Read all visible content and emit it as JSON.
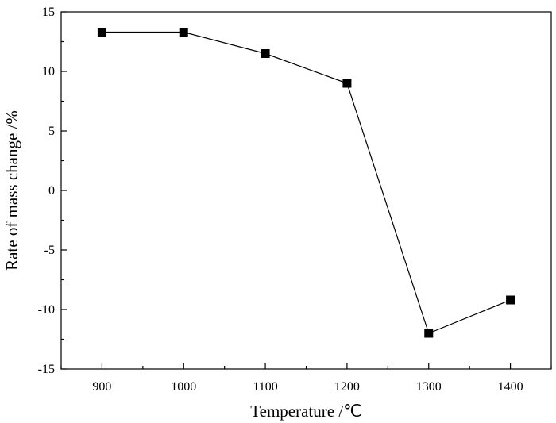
{
  "chart_data": {
    "type": "line",
    "title": "",
    "xlabel": "Temperature /℃",
    "ylabel": "Rate of mass change /%",
    "x": [
      900,
      1000,
      1100,
      1200,
      1300,
      1400
    ],
    "series": [
      {
        "values": [
          13.3,
          13.3,
          11.5,
          9.0,
          -12.0,
          -9.2
        ]
      }
    ],
    "xlim": [
      850,
      1450
    ],
    "ylim": [
      -15,
      15
    ],
    "x_ticks": [
      "900",
      "1000",
      "1100",
      "1200",
      "1300",
      "1400"
    ],
    "y_ticks": [
      "-15",
      "-10",
      "-5",
      "0",
      "5",
      "10",
      "15"
    ],
    "marker": "square",
    "grid": false,
    "legend": "none",
    "colors": {
      "line": "#000000",
      "marker": "#000000",
      "axes": "#000000"
    }
  }
}
